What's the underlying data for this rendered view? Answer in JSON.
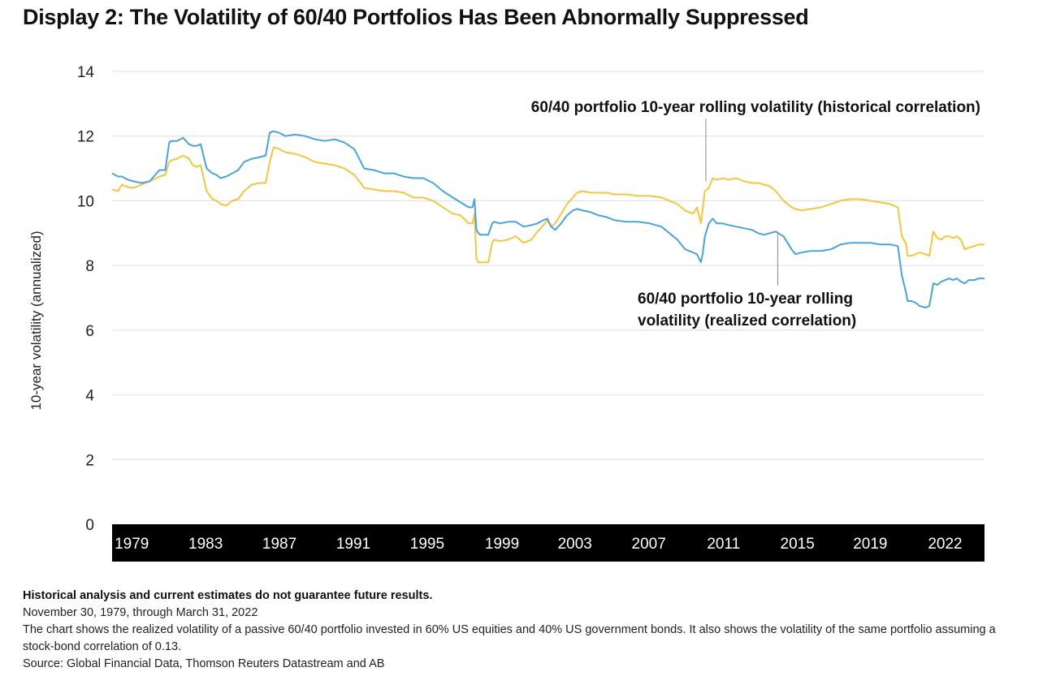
{
  "title": "Display 2: The Volatility of 60/40 Portfolios Has Been Abnormally Suppressed",
  "chart_data": {
    "type": "line",
    "ylabel": "10-year volatility (annualized)",
    "xlabel": "",
    "ylim": [
      0,
      14
    ],
    "yticks": [
      0,
      2,
      4,
      6,
      8,
      10,
      12,
      14
    ],
    "xlim": [
      1978.5,
      2022.8
    ],
    "xticks": [
      {
        "label": "1979",
        "value": 1979.5
      },
      {
        "label": "1983",
        "value": 1983.25
      },
      {
        "label": "1987",
        "value": 1987
      },
      {
        "label": "1991",
        "value": 1990.75
      },
      {
        "label": "1995",
        "value": 1994.5
      },
      {
        "label": "1999",
        "value": 1998.3
      },
      {
        "label": "2003",
        "value": 2002
      },
      {
        "label": "2007",
        "value": 2005.75
      },
      {
        "label": "2011",
        "value": 2009.55
      },
      {
        "label": "2015",
        "value": 2013.3
      },
      {
        "label": "2019",
        "value": 2017
      },
      {
        "label": "2022",
        "value": 2020.8
      }
    ],
    "grid": "horizontal",
    "series": [
      {
        "name": "60/40 portfolio 10-year rolling volatility (historical correlation)",
        "color": "#f3c63f",
        "x": [
          1978.5,
          1978.8,
          1979.0,
          1979.3,
          1979.6,
          1980.0,
          1980.4,
          1980.9,
          1981.2,
          1981.4,
          1981.5,
          1981.8,
          1982.1,
          1982.4,
          1982.6,
          1982.8,
          1983.0,
          1983.3,
          1983.6,
          1983.8,
          1984.0,
          1984.3,
          1984.6,
          1984.9,
          1985.2,
          1985.6,
          1986.0,
          1986.3,
          1986.5,
          1986.7,
          1987.0,
          1987.3,
          1987.8,
          1988.3,
          1988.8,
          1989.3,
          1989.8,
          1990.3,
          1990.8,
          1991.3,
          1991.8,
          1992.3,
          1992.8,
          1993.3,
          1993.8,
          1994.3,
          1994.8,
          1995.3,
          1995.8,
          1996.2,
          1996.6,
          1996.8,
          1996.9,
          1997.0,
          1997.1,
          1997.2,
          1997.6,
          1997.8,
          1997.9,
          1998.2,
          1998.6,
          1999.0,
          1999.4,
          1999.8,
          2000.1,
          2000.4,
          2000.6,
          2000.8,
          2001.0,
          2001.3,
          2001.6,
          2001.9,
          2002.1,
          2002.4,
          2002.8,
          2003.2,
          2003.6,
          2004.0,
          2004.6,
          2005.2,
          2005.8,
          2006.4,
          2006.8,
          2007.2,
          2007.6,
          2008.0,
          2008.2,
          2008.4,
          2008.5,
          2008.6,
          2008.8,
          2009.0,
          2009.2,
          2009.5,
          2009.8,
          2010.2,
          2010.6,
          2011.0,
          2011.3,
          2011.6,
          2011.9,
          2012.2,
          2012.6,
          2013.0,
          2013.2,
          2013.5,
          2014.0,
          2014.5,
          2015.0,
          2015.5,
          2016.0,
          2016.5,
          2017.0,
          2017.5,
          2018.0,
          2018.4,
          2018.6,
          2018.8,
          2018.9,
          2019.1,
          2019.3,
          2019.5,
          2019.8,
          2020.0,
          2020.2,
          2020.4,
          2020.6,
          2020.8,
          2021.0,
          2021.2,
          2021.4,
          2021.6,
          2021.8,
          2022.0,
          2022.3,
          2022.5,
          2022.8
        ],
        "values": [
          10.35,
          10.3,
          10.5,
          10.42,
          10.4,
          10.5,
          10.6,
          10.75,
          10.8,
          11.2,
          11.25,
          11.3,
          11.4,
          11.3,
          11.1,
          11.05,
          11.1,
          10.3,
          10.05,
          10.0,
          9.9,
          9.85,
          10.0,
          10.05,
          10.3,
          10.5,
          10.55,
          10.55,
          11.2,
          11.65,
          11.6,
          11.5,
          11.45,
          11.35,
          11.2,
          11.15,
          11.1,
          11.0,
          10.8,
          10.4,
          10.35,
          10.3,
          10.3,
          10.25,
          10.1,
          10.1,
          10.0,
          9.8,
          9.6,
          9.55,
          9.3,
          9.3,
          9.6,
          8.2,
          8.1,
          8.1,
          8.1,
          8.7,
          8.8,
          8.75,
          8.8,
          8.9,
          8.7,
          8.8,
          9.05,
          9.25,
          9.4,
          9.2,
          9.3,
          9.6,
          9.9,
          10.1,
          10.25,
          10.3,
          10.25,
          10.25,
          10.25,
          10.2,
          10.2,
          10.15,
          10.15,
          10.1,
          10.0,
          9.9,
          9.7,
          9.6,
          9.8,
          9.3,
          9.8,
          10.3,
          10.4,
          10.7,
          10.65,
          10.7,
          10.65,
          10.7,
          10.6,
          10.55,
          10.55,
          10.5,
          10.45,
          10.3,
          10.0,
          9.8,
          9.75,
          9.7,
          9.75,
          9.8,
          9.9,
          10.0,
          10.05,
          10.05,
          10.0,
          9.95,
          9.9,
          9.8,
          8.9,
          8.7,
          8.3,
          8.3,
          8.35,
          8.4,
          8.35,
          8.3,
          9.05,
          8.85,
          8.8,
          8.9,
          8.9,
          8.85,
          8.9,
          8.8,
          8.5,
          8.55,
          8.6,
          8.65,
          8.65
        ]
      },
      {
        "name": "60/40 portfolio 10-year rolling volatility (realized correlation)",
        "color": "#4aa3d9",
        "x": [
          1978.5,
          1978.8,
          1979.0,
          1979.3,
          1979.6,
          1980.0,
          1980.4,
          1980.9,
          1981.2,
          1981.4,
          1981.5,
          1981.8,
          1982.1,
          1982.4,
          1982.6,
          1982.8,
          1983.0,
          1983.3,
          1983.6,
          1983.8,
          1984.0,
          1984.3,
          1984.6,
          1984.9,
          1985.2,
          1985.6,
          1986.0,
          1986.3,
          1986.5,
          1986.7,
          1987.0,
          1987.3,
          1987.8,
          1988.3,
          1988.8,
          1989.3,
          1989.8,
          1990.3,
          1990.8,
          1991.3,
          1991.8,
          1992.3,
          1992.8,
          1993.3,
          1993.8,
          1994.3,
          1994.8,
          1995.3,
          1995.8,
          1996.2,
          1996.6,
          1996.8,
          1996.9,
          1997.0,
          1997.1,
          1997.2,
          1997.6,
          1997.8,
          1997.9,
          1998.2,
          1998.6,
          1999.0,
          1999.4,
          1999.8,
          2000.1,
          2000.4,
          2000.6,
          2000.8,
          2001.0,
          2001.3,
          2001.6,
          2001.9,
          2002.1,
          2002.4,
          2002.8,
          2003.2,
          2003.6,
          2004.0,
          2004.6,
          2005.2,
          2005.8,
          2006.4,
          2006.8,
          2007.2,
          2007.6,
          2008.0,
          2008.2,
          2008.4,
          2008.5,
          2008.6,
          2008.8,
          2009.0,
          2009.2,
          2009.5,
          2009.8,
          2010.2,
          2010.6,
          2011.0,
          2011.3,
          2011.6,
          2011.9,
          2012.2,
          2012.6,
          2013.0,
          2013.2,
          2013.5,
          2014.0,
          2014.5,
          2015.0,
          2015.5,
          2016.0,
          2016.5,
          2017.0,
          2017.5,
          2018.0,
          2018.4,
          2018.6,
          2018.8,
          2018.9,
          2019.1,
          2019.3,
          2019.5,
          2019.8,
          2020.0,
          2020.2,
          2020.4,
          2020.6,
          2020.8,
          2021.0,
          2021.2,
          2021.4,
          2021.6,
          2021.8,
          2022.0,
          2022.3,
          2022.5,
          2022.8
        ],
        "values": [
          10.85,
          10.75,
          10.75,
          10.65,
          10.6,
          10.55,
          10.6,
          10.95,
          10.95,
          11.8,
          11.85,
          11.85,
          11.95,
          11.75,
          11.7,
          11.7,
          11.75,
          11.0,
          10.85,
          10.8,
          10.7,
          10.75,
          10.85,
          10.95,
          11.2,
          11.3,
          11.35,
          11.4,
          12.1,
          12.15,
          12.1,
          12.0,
          12.05,
          12.0,
          11.9,
          11.85,
          11.9,
          11.8,
          11.6,
          11.0,
          10.95,
          10.85,
          10.85,
          10.75,
          10.7,
          10.7,
          10.55,
          10.3,
          10.1,
          9.95,
          9.8,
          9.8,
          10.05,
          9.1,
          9.0,
          8.95,
          8.95,
          9.3,
          9.35,
          9.3,
          9.35,
          9.35,
          9.2,
          9.25,
          9.3,
          9.4,
          9.45,
          9.2,
          9.1,
          9.3,
          9.55,
          9.7,
          9.75,
          9.7,
          9.65,
          9.55,
          9.5,
          9.4,
          9.35,
          9.35,
          9.3,
          9.2,
          9.0,
          8.8,
          8.5,
          8.4,
          8.35,
          8.1,
          8.4,
          8.9,
          9.3,
          9.45,
          9.3,
          9.3,
          9.25,
          9.2,
          9.15,
          9.1,
          9.0,
          8.95,
          9.0,
          9.05,
          8.9,
          8.5,
          8.35,
          8.4,
          8.45,
          8.45,
          8.5,
          8.65,
          8.7,
          8.7,
          8.7,
          8.65,
          8.65,
          8.6,
          7.7,
          7.2,
          6.9,
          6.9,
          6.85,
          6.75,
          6.7,
          6.75,
          7.45,
          7.4,
          7.5,
          7.55,
          7.6,
          7.55,
          7.6,
          7.5,
          7.45,
          7.55,
          7.55,
          7.6,
          7.6
        ]
      }
    ],
    "annotations": [
      {
        "lines": [
          "60/40 portfolio 10-year rolling volatility (historical correlation)"
        ],
        "series": 0
      },
      {
        "lines": [
          "60/40 portfolio 10-year rolling",
          "volatility (realized correlation)"
        ],
        "series": 1
      }
    ]
  },
  "footer": {
    "disclaimer": "Historical analysis and current estimates do not guarantee future results.",
    "period": "November 30, 1979, through March 31, 2022",
    "description": "The chart shows the realized volatility of a passive 60/40 portfolio invested in 60% US equities and 40% US government bonds. It also shows the volatility of the same portfolio assuming a stock-bond correlation of 0.13.",
    "source": "Source: Global Financial Data, Thomson Reuters Datastream and AB"
  }
}
